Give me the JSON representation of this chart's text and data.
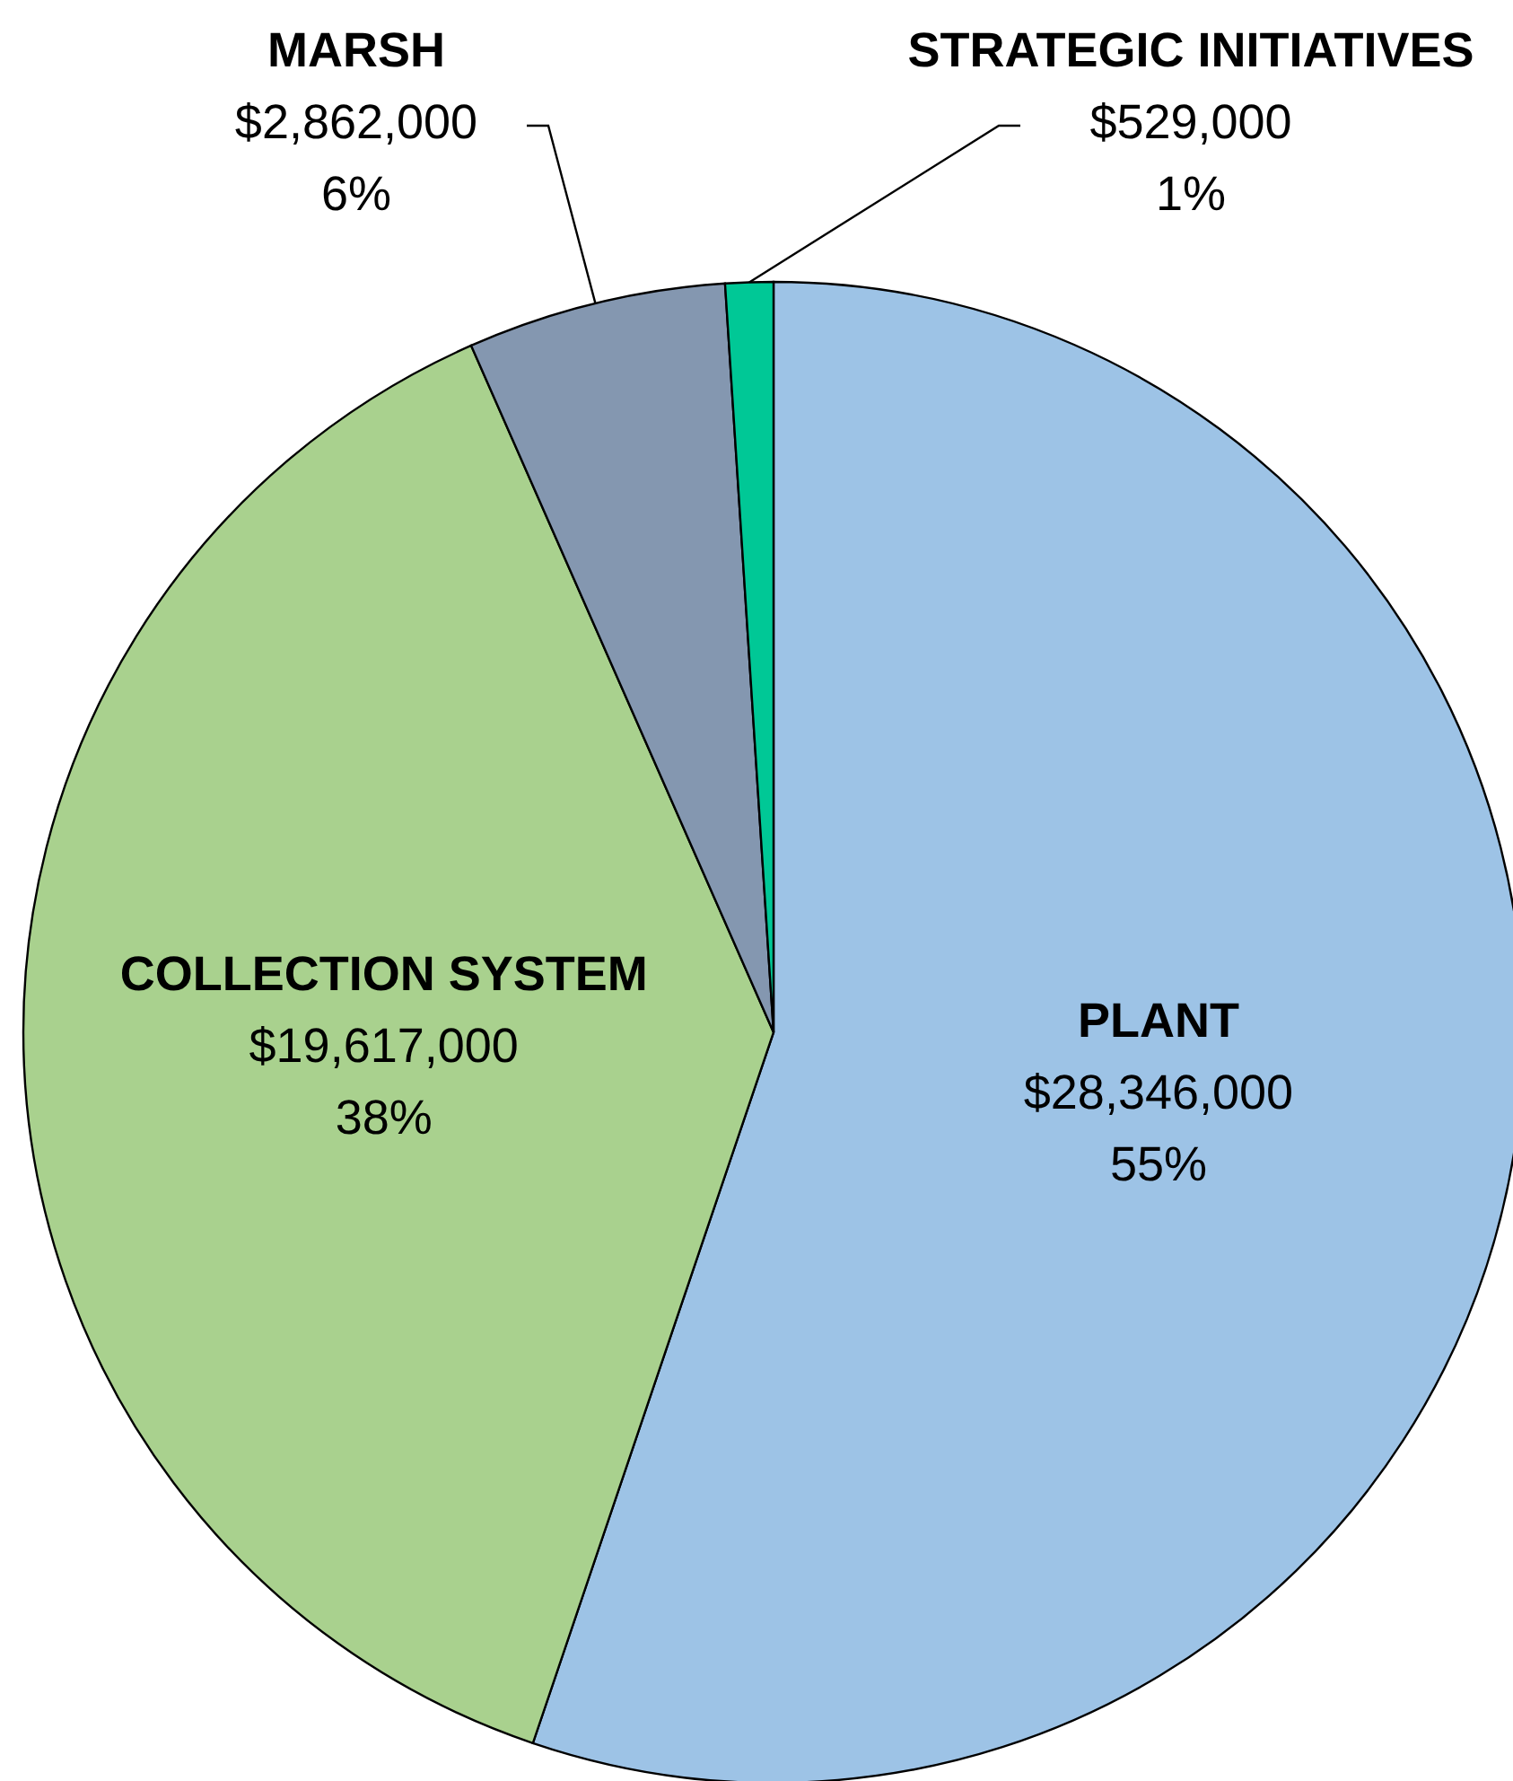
{
  "chart_data": {
    "type": "pie",
    "categories": [
      "PLANT",
      "COLLECTION SYSTEM",
      "MARSH",
      "STRATEGIC INITIATIVES"
    ],
    "values": [
      28346000,
      19617000,
      2862000,
      529000
    ],
    "colors": [
      "#9dc3e6",
      "#a9d18e",
      "#8497b0",
      "#00c896"
    ],
    "value_labels": [
      "$28,346,000\n55%",
      "$19,617,000\n38%",
      "$2,862,000\n6%",
      "$529,000\n1%"
    ]
  }
}
